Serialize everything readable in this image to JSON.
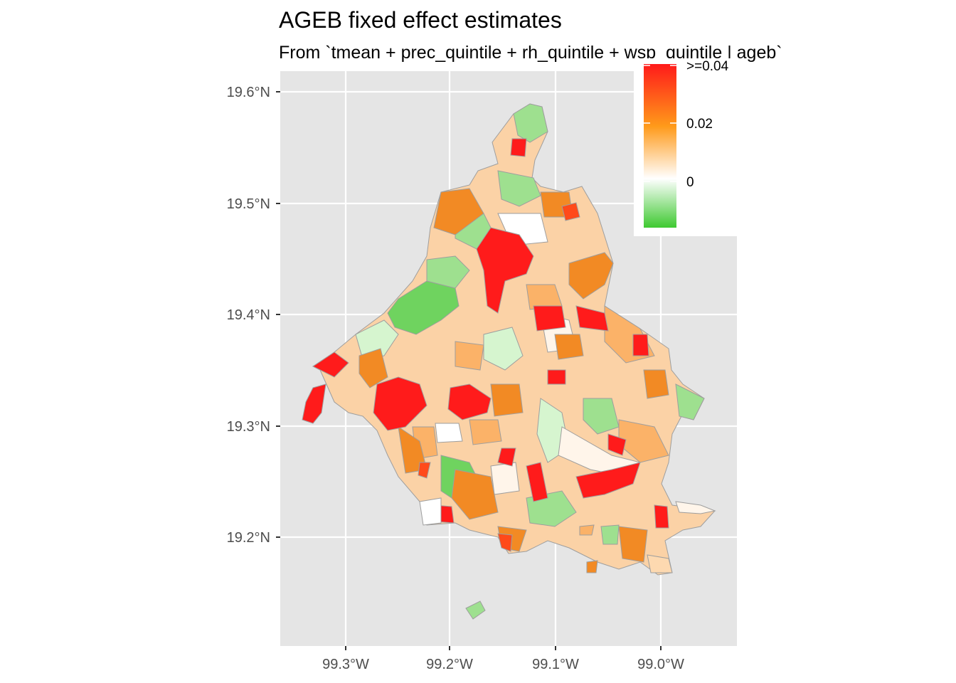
{
  "title": "AGEB fixed effect estimates",
  "subtitle": "From `tmean + prec_quintile + rh_quintile + wsp_quintile | ageb`",
  "axes": {
    "x_ticks": [
      "99.3°W",
      "99.2°W",
      "99.1°W",
      "99.0°W"
    ],
    "y_ticks": [
      "19.6°N",
      "19.5°N",
      "19.4°N",
      "19.3°N",
      "19.2°N"
    ]
  },
  "legend": {
    "position": "top-right",
    "labels": [
      ">=0.04",
      "0.02",
      "0"
    ],
    "colors": {
      "low": "#3ec930",
      "mid": "#ffffff",
      "orange": "#ff9a1a",
      "high": "#ff1a1a"
    }
  },
  "colors": {
    "panel_bg": "#e5e5e5",
    "grid": "#ffffff",
    "polygon_stroke": "#9e9e9e",
    "dark_red": "#ff1b1b",
    "red_orange": "#ff4a1a",
    "orange": "#f28a24",
    "light_orange": "#fbb268",
    "peach": "#fdd9b0",
    "pale": "#fff5ea",
    "pale_green": "#d6f5cf",
    "light_green": "#9ee08f",
    "green": "#6fd35f"
  }
}
